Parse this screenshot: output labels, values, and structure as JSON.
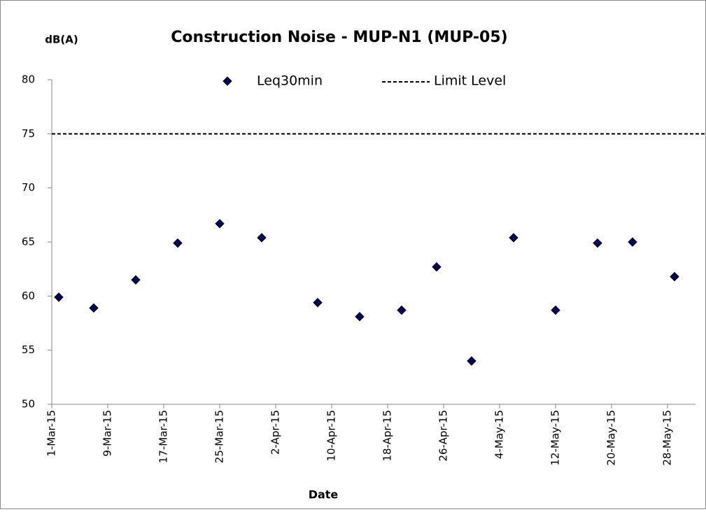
{
  "chart_data": {
    "type": "scatter",
    "title": "Construction Noise - MUP-N1  (MUP-05)",
    "y_label": "dB(A)",
    "x_label": "Date",
    "x": [
      "2015-03-02",
      "2015-03-07",
      "2015-03-13",
      "2015-03-19",
      "2015-03-25",
      "2015-03-31",
      "2015-04-08",
      "2015-04-14",
      "2015-04-20",
      "2015-04-25",
      "2015-04-30",
      "2015-05-06",
      "2015-05-12",
      "2015-05-18",
      "2015-05-23",
      "2015-05-29"
    ],
    "series": [
      {
        "name": "Leq30min",
        "color": "#00005a",
        "values": [
          59.9,
          58.9,
          61.5,
          64.9,
          66.7,
          65.4,
          59.4,
          58.1,
          58.7,
          62.7,
          54.0,
          65.4,
          58.7,
          64.9,
          65.0,
          61.8
        ]
      }
    ],
    "limit": {
      "name": "Limit Level",
      "value": 75,
      "color": "#000000"
    },
    "xlim": [
      "2015-03-01",
      "2015-06-01"
    ],
    "xticks": [
      {
        "value": "2015-03-01",
        "label": "1-Mar-15"
      },
      {
        "value": "2015-03-09",
        "label": "9-Mar-15"
      },
      {
        "value": "2015-03-17",
        "label": "17-Mar-15"
      },
      {
        "value": "2015-03-25",
        "label": "25-Mar-15"
      },
      {
        "value": "2015-04-02",
        "label": "2-Apr-15"
      },
      {
        "value": "2015-04-10",
        "label": "10-Apr-15"
      },
      {
        "value": "2015-04-18",
        "label": "18-Apr-15"
      },
      {
        "value": "2015-04-26",
        "label": "26-Apr-15"
      },
      {
        "value": "2015-05-04",
        "label": "4-May-15"
      },
      {
        "value": "2015-05-12",
        "label": "12-May-15"
      },
      {
        "value": "2015-05-20",
        "label": "20-May-15"
      },
      {
        "value": "2015-05-28",
        "label": "28-May-15"
      }
    ],
    "ylim": [
      50,
      80
    ],
    "yticks": [
      50,
      55,
      60,
      65,
      70,
      75,
      80
    ],
    "grid": false,
    "legend": "top"
  }
}
